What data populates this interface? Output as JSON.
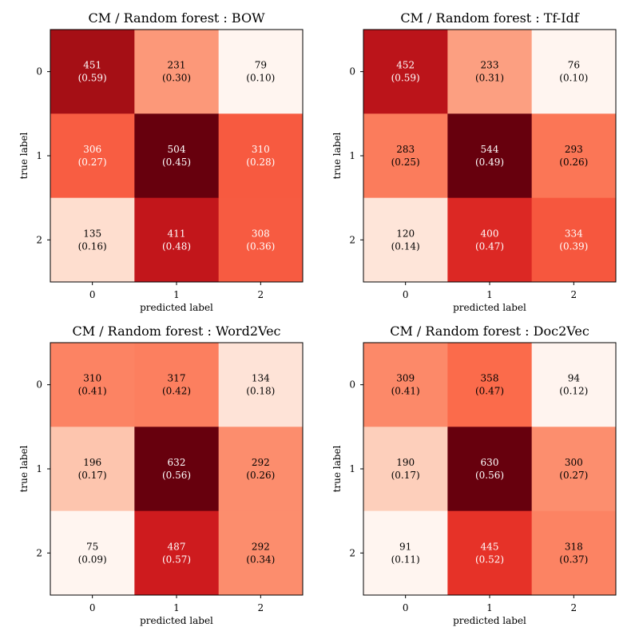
{
  "colors": {
    "colormap": "Reds",
    "low": "#fff5f0",
    "high": "#67000d",
    "text_dark": "#000000",
    "text_light": "#ffffff"
  },
  "chart_data": [
    {
      "type": "heatmap",
      "title": "CM / Random forest : BOW",
      "xlabel": "predicted label",
      "ylabel": "true label",
      "x_categories": [
        "0",
        "1",
        "2"
      ],
      "y_categories": [
        "0",
        "1",
        "2"
      ],
      "counts": [
        [
          451,
          231,
          79
        ],
        [
          306,
          504,
          310
        ],
        [
          135,
          411,
          308
        ]
      ],
      "normalized": [
        "0.59",
        "0.30",
        "0.10",
        "0.27",
        "0.45",
        "0.28",
        "0.16",
        "0.48",
        "0.36"
      ]
    },
    {
      "type": "heatmap",
      "title": "CM / Random forest : Tf-Idf",
      "xlabel": "predicted label",
      "ylabel": "true label",
      "x_categories": [
        "0",
        "1",
        "2"
      ],
      "y_categories": [
        "0",
        "1",
        "2"
      ],
      "counts": [
        [
          452,
          233,
          76
        ],
        [
          283,
          544,
          293
        ],
        [
          120,
          400,
          334
        ]
      ],
      "normalized": [
        "0.59",
        "0.31",
        "0.10",
        "0.25",
        "0.49",
        "0.26",
        "0.14",
        "0.47",
        "0.39"
      ]
    },
    {
      "type": "heatmap",
      "title": "CM / Random forest : Word2Vec",
      "xlabel": "predicted label",
      "ylabel": "true label",
      "x_categories": [
        "0",
        "1",
        "2"
      ],
      "y_categories": [
        "0",
        "1",
        "2"
      ],
      "counts": [
        [
          310,
          317,
          134
        ],
        [
          196,
          632,
          292
        ],
        [
          75,
          487,
          292
        ]
      ],
      "normalized": [
        "0.41",
        "0.42",
        "0.18",
        "0.17",
        "0.56",
        "0.26",
        "0.09",
        "0.57",
        "0.34"
      ]
    },
    {
      "type": "heatmap",
      "title": "CM / Random forest : Doc2Vec",
      "xlabel": "predicted label",
      "ylabel": "true label",
      "x_categories": [
        "0",
        "1",
        "2"
      ],
      "y_categories": [
        "0",
        "1",
        "2"
      ],
      "counts": [
        [
          309,
          358,
          94
        ],
        [
          190,
          630,
          300
        ],
        [
          91,
          445,
          318
        ]
      ],
      "normalized": [
        "0.41",
        "0.47",
        "0.12",
        "0.17",
        "0.56",
        "0.27",
        "0.11",
        "0.52",
        "0.37"
      ]
    }
  ]
}
